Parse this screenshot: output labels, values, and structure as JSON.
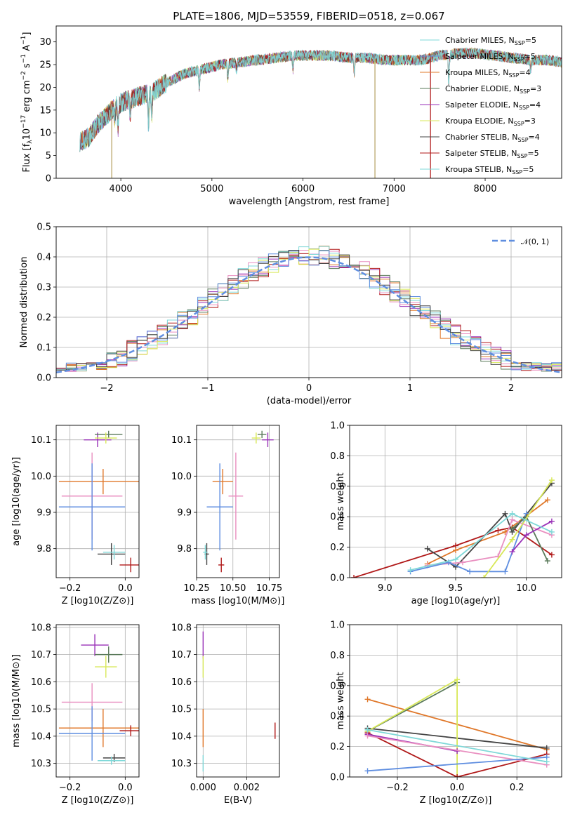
{
  "title": "PLATE=1806, MJD=53559, FIBERID=0518, z=0.067",
  "colors": {
    "c1": "#5f8ee0",
    "c2": "#e0782a",
    "c3": "#e98fc0",
    "c4": "#5a7a5a",
    "c5": "#9a32b8",
    "c6": "#d8e858",
    "c7": "#444444",
    "c8": "#b01818",
    "c9": "#7fd8d8",
    "normal": "#5f8ee0"
  },
  "chart_data": [
    {
      "id": "spectrum",
      "type": "line",
      "xlabel": "wavelength [Angstrom, rest frame]",
      "ylabel": "Flux [f_λ 10^-17 erg cm^-2 s^-1 A^-1]",
      "xlim": [
        3290,
        8840
      ],
      "ylim": [
        0,
        33.5
      ],
      "xticks": [
        4000,
        5000,
        6000,
        7000,
        8000
      ],
      "yticks": [
        0,
        5,
        10,
        15,
        20,
        25,
        30
      ],
      "grid": false,
      "legend_position": "top-right",
      "legend": [
        {
          "label": "Chabrier MILES, N",
          "n": "=5",
          "color": "c9"
        },
        {
          "label": "Salpeter MILES, N",
          "n": "=5",
          "color": "c1"
        },
        {
          "label": "Kroupa MILES, N",
          "n": "=4",
          "color": "c2"
        },
        {
          "label": "Chabrier ELODIE, N",
          "n": "=3",
          "color": "c4"
        },
        {
          "label": "Salpeter ELODIE, N",
          "n": "=4",
          "color": "c5"
        },
        {
          "label": "Kroupa ELODIE, N",
          "n": "=3",
          "color": "c6"
        },
        {
          "label": "Chabrier STELIB, N",
          "n": "=4",
          "color": "c7"
        },
        {
          "label": "Salpeter STELIB, N",
          "n": "=5",
          "color": "c8"
        },
        {
          "label": "Kroupa STELIB, N",
          "n": "=5",
          "color": "c9"
        }
      ],
      "continuum": [
        [
          3550,
          8
        ],
        [
          3650,
          9
        ],
        [
          3750,
          12
        ],
        [
          3850,
          14
        ],
        [
          3950,
          16
        ],
        [
          4050,
          17
        ],
        [
          4200,
          18
        ],
        [
          4350,
          19
        ],
        [
          4500,
          21
        ],
        [
          4700,
          23
        ],
        [
          4900,
          24
        ],
        [
          5100,
          25
        ],
        [
          5300,
          25.5
        ],
        [
          5500,
          26
        ],
        [
          5700,
          26.5
        ],
        [
          5900,
          27
        ],
        [
          6100,
          27
        ],
        [
          6300,
          27
        ],
        [
          6500,
          26.5
        ],
        [
          6700,
          26.5
        ],
        [
          6900,
          26
        ],
        [
          7100,
          26
        ],
        [
          7300,
          26
        ],
        [
          7500,
          27
        ],
        [
          7700,
          27.5
        ],
        [
          7900,
          27.5
        ],
        [
          8100,
          27
        ],
        [
          8300,
          26.5
        ],
        [
          8500,
          26
        ],
        [
          8700,
          26
        ],
        [
          8840,
          25.5
        ]
      ],
      "absorption": [
        [
          3934,
          13
        ],
        [
          3969,
          11
        ],
        [
          4102,
          14
        ],
        [
          4304,
          12
        ],
        [
          4340,
          14
        ],
        [
          4861,
          20
        ],
        [
          5175,
          22
        ],
        [
          5270,
          24
        ],
        [
          5890,
          24
        ],
        [
          6563,
          23
        ],
        [
          7600,
          21
        ],
        [
          8500,
          24
        ]
      ],
      "spikes": [
        [
          3900,
          0
        ],
        [
          6790,
          0
        ],
        [
          7400,
          0
        ]
      ]
    },
    {
      "id": "residuals",
      "type": "step",
      "xlabel": "(data-model)/error",
      "ylabel": "Normed distribution",
      "xlim": [
        -2.5,
        2.5
      ],
      "ylim": [
        0,
        0.5
      ],
      "xticks": [
        -2,
        -1,
        0,
        1,
        2
      ],
      "xtick_labels": [
        "−2",
        "−1",
        "0",
        "1",
        "2"
      ],
      "yticks": [
        0,
        0.1,
        0.2,
        0.3,
        0.4,
        0.5
      ],
      "grid": true,
      "legend_position": "top-right",
      "legend": [
        {
          "label": "𝒩(0, 1)",
          "color": "normal",
          "style": "dashed"
        }
      ],
      "bin_width": 0.1
    },
    {
      "id": "age_vs_Z",
      "type": "errorbar",
      "xlabel": "Z [log10(Z/Z⊙)]",
      "ylabel": "age  [log10(age/yr)]",
      "xlim": [
        -0.25,
        0.05
      ],
      "ylim": [
        9.72,
        10.14
      ],
      "xticks": [
        -0.2,
        0,
        0.2
      ],
      "xtick_labels": [
        "−0.2",
        "0.0",
        ""
      ],
      "yticks": [
        9.8,
        9.9,
        10.0,
        10.1
      ],
      "grid": true,
      "points": [
        {
          "x": -0.1,
          "y": 10.1,
          "xerr": 0.05,
          "yerr": 0.02,
          "color": "c5"
        },
        {
          "x": -0.06,
          "y": 10.115,
          "xerr": 0.05,
          "yerr": 0.01,
          "color": "c4"
        },
        {
          "x": -0.07,
          "y": 10.105,
          "xerr": 0.04,
          "yerr": 0.015,
          "color": "c6"
        },
        {
          "x": -0.08,
          "y": 9.985,
          "xerr": 0.16,
          "yerr": 0.035,
          "color": "c2"
        },
        {
          "x": -0.12,
          "y": 9.945,
          "xerr": 0.11,
          "yerr": 0.12,
          "color": "c3"
        },
        {
          "x": -0.12,
          "y": 9.915,
          "xerr": 0.12,
          "yerr": 0.12,
          "color": "c1"
        },
        {
          "x": -0.05,
          "y": 9.785,
          "xerr": 0.05,
          "yerr": 0.03,
          "color": "c7"
        },
        {
          "x": -0.04,
          "y": 9.79,
          "xerr": 0.04,
          "yerr": 0.02,
          "color": "c9"
        },
        {
          "x": 0.02,
          "y": 9.755,
          "xerr": 0.04,
          "yerr": 0.02,
          "color": "c8"
        }
      ]
    },
    {
      "id": "age_vs_mass",
      "type": "errorbar",
      "xlabel": "mass [log10(M/M⊙)]",
      "ylabel": "",
      "xlim": [
        10.25,
        10.82
      ],
      "ylim": [
        9.72,
        10.14
      ],
      "xticks": [
        10.25,
        10.5,
        10.75
      ],
      "xtick_labels": [
        "10.25",
        "10.50",
        "10.75"
      ],
      "yticks": [
        9.8,
        9.9,
        10.0,
        10.1
      ],
      "grid": true,
      "points": [
        {
          "x": 10.74,
          "y": 10.1,
          "xerr": 0.04,
          "yerr": 0.02,
          "color": "c5"
        },
        {
          "x": 10.7,
          "y": 10.115,
          "xerr": 0.03,
          "yerr": 0.01,
          "color": "c4"
        },
        {
          "x": 10.66,
          "y": 10.105,
          "xerr": 0.03,
          "yerr": 0.015,
          "color": "c6"
        },
        {
          "x": 10.43,
          "y": 9.985,
          "xerr": 0.07,
          "yerr": 0.035,
          "color": "c2"
        },
        {
          "x": 10.52,
          "y": 9.945,
          "xerr": 0.05,
          "yerr": 0.12,
          "color": "c3"
        },
        {
          "x": 10.41,
          "y": 9.915,
          "xerr": 0.09,
          "yerr": 0.12,
          "color": "c1"
        },
        {
          "x": 10.32,
          "y": 9.785,
          "xerr": 0.015,
          "yerr": 0.03,
          "color": "c7"
        },
        {
          "x": 10.31,
          "y": 9.79,
          "xerr": 0.015,
          "yerr": 0.02,
          "color": "c9"
        },
        {
          "x": 10.42,
          "y": 9.755,
          "xerr": 0.02,
          "yerr": 0.02,
          "color": "c8"
        }
      ]
    },
    {
      "id": "weight_vs_age",
      "type": "line",
      "xlabel": "age  [log10(age/yr)]",
      "ylabel": "mass weight",
      "xlim": [
        8.75,
        10.25
      ],
      "ylim": [
        0,
        1.0
      ],
      "xticks": [
        9.0,
        9.5,
        10.0
      ],
      "xtick_labels": [
        "9.0",
        "9.5",
        "10.0"
      ],
      "yticks": [
        0,
        0.2,
        0.4,
        0.6,
        0.8,
        1.0
      ],
      "grid": true,
      "series": [
        {
          "color": "c8",
          "points": [
            [
              8.78,
              0.0
            ],
            [
              9.5,
              0.21
            ],
            [
              9.8,
              0.31
            ],
            [
              9.9,
              0.33
            ],
            [
              10.18,
              0.15
            ]
          ]
        },
        {
          "color": "c2",
          "points": [
            [
              9.3,
              0.09
            ],
            [
              9.5,
              0.18
            ],
            [
              9.85,
              0.3
            ],
            [
              10.15,
              0.51
            ]
          ]
        },
        {
          "color": "c7",
          "points": [
            [
              9.3,
              0.19
            ],
            [
              9.5,
              0.07
            ],
            [
              9.85,
              0.42
            ],
            [
              9.9,
              0.3
            ],
            [
              10.18,
              0.62
            ]
          ]
        },
        {
          "color": "c3",
          "points": [
            [
              9.3,
              0.08
            ],
            [
              9.55,
              0.1
            ],
            [
              9.8,
              0.14
            ],
            [
              9.9,
              0.38
            ],
            [
              10.18,
              0.28
            ]
          ]
        },
        {
          "color": "c1",
          "points": [
            [
              9.18,
              0.04
            ],
            [
              9.45,
              0.1
            ],
            [
              9.6,
              0.04
            ],
            [
              9.85,
              0.04
            ],
            [
              10.0,
              0.42
            ]
          ]
        },
        {
          "color": "c4",
          "points": [
            [
              9.9,
              0.32
            ],
            [
              10.0,
              0.4
            ],
            [
              10.15,
              0.11
            ]
          ]
        },
        {
          "color": "c5",
          "points": [
            [
              9.9,
              0.17
            ],
            [
              10.0,
              0.28
            ],
            [
              10.18,
              0.37
            ]
          ]
        },
        {
          "color": "c6",
          "points": [
            [
              9.7,
              0.0
            ],
            [
              9.9,
              0.25
            ],
            [
              10.18,
              0.64
            ]
          ]
        },
        {
          "color": "c9",
          "points": [
            [
              9.18,
              0.05
            ],
            [
              9.5,
              0.12
            ],
            [
              9.9,
              0.42
            ],
            [
              10.18,
              0.3
            ]
          ]
        }
      ]
    },
    {
      "id": "mass_vs_Z",
      "type": "errorbar",
      "xlabel": "Z [log10(Z/Z⊙)]",
      "ylabel": "mass [log10(M/M⊙)]",
      "xlim": [
        -0.25,
        0.05
      ],
      "ylim": [
        10.25,
        10.81
      ],
      "xticks": [
        -0.2,
        0,
        0.2
      ],
      "xtick_labels": [
        "−0.2",
        "0.0",
        ""
      ],
      "yticks": [
        10.3,
        10.4,
        10.5,
        10.6,
        10.7,
        10.8
      ],
      "grid": true,
      "points": [
        {
          "x": -0.11,
          "y": 10.735,
          "xerr": 0.05,
          "yerr": 0.04,
          "color": "c5"
        },
        {
          "x": -0.06,
          "y": 10.7,
          "xerr": 0.05,
          "yerr": 0.03,
          "color": "c4"
        },
        {
          "x": -0.07,
          "y": 10.655,
          "xerr": 0.04,
          "yerr": 0.04,
          "color": "c6"
        },
        {
          "x": -0.12,
          "y": 10.525,
          "xerr": 0.11,
          "yerr": 0.07,
          "color": "c3"
        },
        {
          "x": -0.08,
          "y": 10.43,
          "xerr": 0.16,
          "yerr": 0.07,
          "color": "c2"
        },
        {
          "x": -0.12,
          "y": 10.41,
          "xerr": 0.12,
          "yerr": 0.1,
          "color": "c1"
        },
        {
          "x": 0.02,
          "y": 10.42,
          "xerr": 0.04,
          "yerr": 0.02,
          "color": "c8"
        },
        {
          "x": -0.04,
          "y": 10.32,
          "xerr": 0.04,
          "yerr": 0.015,
          "color": "c7"
        },
        {
          "x": -0.05,
          "y": 10.31,
          "xerr": 0.05,
          "yerr": 0.015,
          "color": "c9"
        }
      ]
    },
    {
      "id": "mass_vs_EBV",
      "type": "errorbar",
      "xlabel": "E(B-V)",
      "ylabel": "",
      "xlim": [
        -0.0003,
        0.0035
      ],
      "ylim": [
        10.25,
        10.81
      ],
      "xticks": [
        0,
        0.002
      ],
      "xtick_labels": [
        "0.000",
        "0.002"
      ],
      "yticks": [
        10.3,
        10.4,
        10.5,
        10.6,
        10.7,
        10.8
      ],
      "grid": true,
      "points": [
        {
          "x": 0.0,
          "y": 10.735,
          "xerr": 0,
          "yerr": 0.05,
          "color": "c5"
        },
        {
          "x": 0.0,
          "y": 10.655,
          "xerr": 0,
          "yerr": 0.04,
          "color": "c6"
        },
        {
          "x": 0.0,
          "y": 10.43,
          "xerr": 0,
          "yerr": 0.07,
          "color": "c2"
        },
        {
          "x": 0.0,
          "y": 10.3,
          "xerr": 0,
          "yerr": 0.03,
          "color": "c9"
        },
        {
          "x": 0.0033,
          "y": 10.42,
          "xerr": 0,
          "yerr": 0.03,
          "color": "c8"
        }
      ]
    },
    {
      "id": "weight_vs_Z",
      "type": "line",
      "xlabel": "Z [log10(Z/Z⊙)]",
      "ylabel": "mass weight",
      "xlim": [
        -0.36,
        0.35
      ],
      "ylim": [
        0,
        1.0
      ],
      "xticks": [
        -0.2,
        0,
        0.2
      ],
      "xtick_labels": [
        "−0.2",
        "0.0",
        "0.2"
      ],
      "yticks": [
        0,
        0.2,
        0.4,
        0.6,
        0.8,
        1.0
      ],
      "grid": true,
      "series": [
        {
          "color": "c2",
          "points": [
            [
              -0.3,
              0.51
            ],
            [
              0.3,
              0.18
            ]
          ]
        },
        {
          "color": "c7",
          "points": [
            [
              -0.3,
              0.32
            ],
            [
              0.3,
              0.19
            ]
          ]
        },
        {
          "color": "c4",
          "points": [
            [
              -0.3,
              0.3
            ],
            [
              0.0,
              0.62
            ]
          ]
        },
        {
          "color": "c6",
          "points": [
            [
              -0.3,
              0.3
            ],
            [
              0.0,
              0.64
            ],
            [
              0.0,
              0.0
            ]
          ]
        },
        {
          "color": "c8",
          "points": [
            [
              -0.3,
              0.29
            ],
            [
              0.0,
              0.0
            ],
            [
              0.3,
              0.15
            ]
          ]
        },
        {
          "color": "c5",
          "points": [
            [
              -0.3,
              0.28
            ],
            [
              0.0,
              0.17
            ]
          ]
        },
        {
          "color": "c3",
          "points": [
            [
              -0.3,
              0.27
            ],
            [
              0.3,
              0.08
            ]
          ]
        },
        {
          "color": "c1",
          "points": [
            [
              -0.3,
              0.04
            ],
            [
              0.3,
              0.13
            ]
          ]
        },
        {
          "color": "c9",
          "points": [
            [
              -0.3,
              0.31
            ],
            [
              0.3,
              0.1
            ]
          ]
        }
      ]
    }
  ]
}
